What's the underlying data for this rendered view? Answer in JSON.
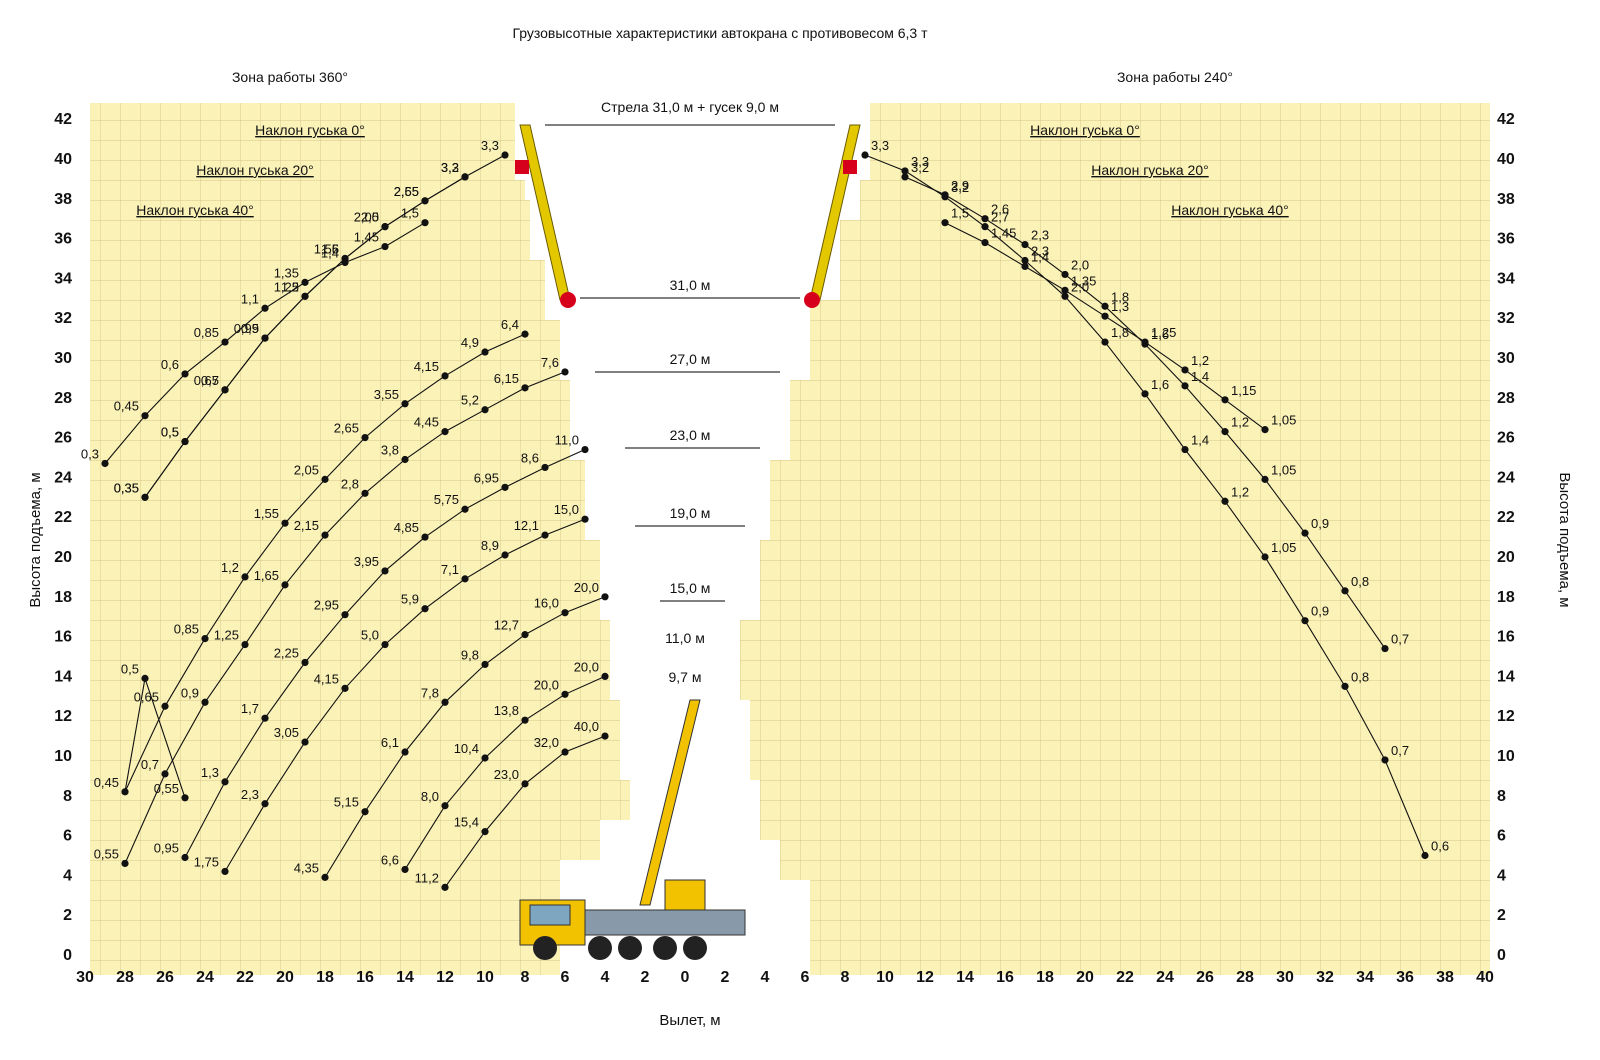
{
  "chart_data": {
    "type": "scatter",
    "title": "Грузовысотные характеристики автокрана с противовесом 6,3 т",
    "xlabel": "Вылет, м",
    "ylabel": "Высота подъема, м",
    "zones": {
      "left": "Зона работы 360°",
      "right": "Зона работы 240°"
    },
    "x_ticks_left": [
      "30",
      "28",
      "26",
      "24",
      "22",
      "20",
      "18",
      "16",
      "14",
      "12",
      "10",
      "8",
      "6",
      "4",
      "2",
      "0"
    ],
    "x_ticks_right": [
      "2",
      "4",
      "6",
      "8",
      "10",
      "12",
      "14",
      "16",
      "18",
      "20",
      "22",
      "24",
      "26",
      "28",
      "30",
      "32",
      "34",
      "36",
      "38",
      "40"
    ],
    "y_ticks": [
      "0",
      "2",
      "4",
      "6",
      "8",
      "10",
      "12",
      "14",
      "16",
      "18",
      "20",
      "22",
      "24",
      "26",
      "28",
      "30",
      "32",
      "34",
      "36",
      "38",
      "40",
      "42"
    ],
    "xlim_left": [
      30,
      0
    ],
    "xlim_right": [
      0,
      40
    ],
    "ylim": [
      0,
      42
    ],
    "tilt_labels": [
      "Наклон гуська 0°",
      "Наклон гуська 20°",
      "Наклон гуська 40°"
    ],
    "boom_labels": [
      "Стрела  31,0 м + гусек 9,0 м",
      "31,0 м",
      "27,0 м",
      "23,0 м",
      "19,0 м",
      "15,0 м",
      "11,0 м",
      "9,7 м"
    ],
    "series_left": [
      {
        "name": "Наклон гуська 0°",
        "points": [
          [
            9,
            40.2,
            "3,3"
          ],
          [
            11,
            39.1,
            "3,3"
          ],
          [
            13,
            37.9,
            "2,55"
          ],
          [
            15,
            36.6,
            "2,0"
          ],
          [
            17,
            35,
            "1,55"
          ],
          [
            19,
            33.1,
            "1,2"
          ],
          [
            21,
            31,
            "0,9"
          ],
          [
            23,
            28.4,
            "0,65"
          ],
          [
            25,
            25.8,
            "0,5"
          ],
          [
            27,
            23,
            "0,35"
          ]
        ]
      },
      {
        "name": "Наклон гуська 20°",
        "points": [
          [
            11,
            39.1,
            "3,2"
          ],
          [
            13,
            37.9,
            "2,65"
          ],
          [
            15,
            36.6,
            "2,05"
          ],
          [
            17,
            35,
            "1,6"
          ],
          [
            19,
            33.1,
            "1,25"
          ],
          [
            21,
            31,
            "0,95"
          ],
          [
            23,
            28.4,
            "0,7"
          ],
          [
            25,
            25.8,
            "0,5"
          ],
          [
            27,
            23,
            "0,35"
          ]
        ]
      },
      {
        "name": "Наклон гуська 40°",
        "points": [
          [
            13,
            36.8,
            "1,5"
          ],
          [
            15,
            35.6,
            "1,45"
          ],
          [
            17,
            34.8,
            "1,4"
          ],
          [
            19,
            33.8,
            "1,35"
          ],
          [
            21,
            32.5,
            "1,1"
          ],
          [
            23,
            30.8,
            "0,85"
          ],
          [
            25,
            29.2,
            "0,6"
          ],
          [
            27,
            27.1,
            "0,45"
          ],
          [
            29,
            24.7,
            "0,3"
          ]
        ]
      },
      {
        "name": "31,0 м",
        "points": [
          [
            8,
            31.2,
            "6,4"
          ],
          [
            10,
            30.3,
            "4,9"
          ],
          [
            12,
            29.1,
            "4,15"
          ],
          [
            14,
            27.7,
            "3,55"
          ],
          [
            16,
            26,
            "2,65"
          ],
          [
            18,
            23.9,
            "2,05"
          ],
          [
            20,
            21.7,
            "1,55"
          ],
          [
            22,
            19,
            "1,2"
          ],
          [
            24,
            15.9,
            "0,85"
          ],
          [
            26,
            12.5,
            "0,65"
          ],
          [
            28,
            8.2,
            "0,45"
          ],
          [
            27,
            13.9,
            "0,5"
          ],
          [
            25,
            7.9,
            "0,55"
          ]
        ]
      },
      {
        "name": "27,0 м",
        "points": [
          [
            6,
            29.3,
            "7,6"
          ],
          [
            8,
            28.5,
            "6,15"
          ],
          [
            10,
            27.4,
            "5,2"
          ],
          [
            12,
            26.3,
            "4,45"
          ],
          [
            14,
            24.9,
            "3,8"
          ],
          [
            16,
            23.2,
            "2,8"
          ],
          [
            18,
            21.1,
            "2,15"
          ],
          [
            20,
            18.6,
            "1,65"
          ],
          [
            22,
            15.6,
            "1,25"
          ],
          [
            24,
            12.7,
            "0,9"
          ],
          [
            26,
            9.1,
            "0,7"
          ],
          [
            28,
            4.6,
            "0,55"
          ]
        ]
      },
      {
        "name": "23,0 м",
        "points": [
          [
            5,
            25.4,
            "11,0"
          ],
          [
            7,
            24.5,
            "8,6"
          ],
          [
            9,
            23.5,
            "6,95"
          ],
          [
            11,
            22.4,
            "5,75"
          ],
          [
            13,
            21,
            "4,85"
          ],
          [
            15,
            19.3,
            "3,95"
          ],
          [
            17,
            17.1,
            "2,95"
          ],
          [
            19,
            14.7,
            "2,25"
          ],
          [
            21,
            11.9,
            "1,7"
          ],
          [
            23,
            8.7,
            "1,3"
          ],
          [
            25,
            4.9,
            "0,95"
          ]
        ]
      },
      {
        "name": "19,0 м",
        "points": [
          [
            5,
            21.9,
            "15,0"
          ],
          [
            7,
            21.1,
            "12,1"
          ],
          [
            9,
            20.1,
            "8,9"
          ],
          [
            11,
            18.9,
            "7,1"
          ],
          [
            13,
            17.4,
            "5,9"
          ],
          [
            15,
            15.6,
            "5,0"
          ],
          [
            17,
            13.4,
            "4,15"
          ],
          [
            19,
            10.7,
            "3,05"
          ],
          [
            21,
            7.6,
            "2,3"
          ],
          [
            23,
            4.2,
            "1,75"
          ]
        ]
      },
      {
        "name": "15,0 м",
        "points": [
          [
            4,
            18,
            "20,0"
          ],
          [
            6,
            17.2,
            "16,0"
          ],
          [
            8,
            16.1,
            "12,7"
          ],
          [
            10,
            14.6,
            "9,8"
          ],
          [
            12,
            12.7,
            "7,8"
          ],
          [
            14,
            10.2,
            "6,1"
          ],
          [
            16,
            7.2,
            "5,15"
          ],
          [
            18,
            3.9,
            "4,35"
          ]
        ]
      },
      {
        "name": "11,0 м",
        "points": [
          [
            4,
            14,
            "20,0"
          ],
          [
            6,
            13.1,
            "20,0"
          ],
          [
            8,
            11.8,
            "13,8"
          ],
          [
            10,
            9.9,
            "10,4"
          ],
          [
            12,
            7.5,
            "8,0"
          ],
          [
            14,
            4.3,
            "6,6"
          ]
        ]
      },
      {
        "name": "9,7 м",
        "points": [
          [
            4,
            11,
            "40,0"
          ],
          [
            6,
            10.2,
            "32,0"
          ],
          [
            8,
            8.6,
            "23,0"
          ],
          [
            10,
            6.2,
            "15,4"
          ],
          [
            12,
            3.4,
            "11,2"
          ]
        ]
      }
    ],
    "series_right": [
      {
        "name": "Наклон гуська 0°",
        "points": [
          [
            9,
            40.2,
            "3,3"
          ],
          [
            11,
            39.4,
            "3,3"
          ],
          [
            13,
            38.1,
            "3,2"
          ],
          [
            15,
            36.6,
            "2,7"
          ],
          [
            17,
            34.9,
            "2,3"
          ],
          [
            19,
            33.1,
            "2,0"
          ],
          [
            21,
            30.8,
            "1,8"
          ],
          [
            23,
            28.2,
            "1,6"
          ],
          [
            25,
            25.4,
            "1,4"
          ],
          [
            27,
            22.8,
            "1,2"
          ],
          [
            29,
            20,
            "1,05"
          ],
          [
            31,
            16.8,
            "0,9"
          ],
          [
            33,
            13.5,
            "0,8"
          ],
          [
            35,
            9.8,
            "0,7"
          ],
          [
            37,
            5,
            "0,6"
          ]
        ]
      },
      {
        "name": "Наклон гуська 20°",
        "points": [
          [
            11,
            39.1,
            "3,2"
          ],
          [
            13,
            38.2,
            "2,9"
          ],
          [
            15,
            37,
            "2,6"
          ],
          [
            17,
            35.7,
            "2,3"
          ],
          [
            19,
            34.2,
            "2,0"
          ],
          [
            21,
            32.6,
            "1,8"
          ],
          [
            23,
            30.7,
            "1,6"
          ],
          [
            25,
            28.6,
            "1,4"
          ],
          [
            27,
            26.3,
            "1,2"
          ],
          [
            29,
            23.9,
            "1,05"
          ],
          [
            31,
            21.2,
            "0,9"
          ],
          [
            33,
            18.3,
            "0,8"
          ],
          [
            35,
            15.4,
            "0,7"
          ]
        ]
      },
      {
        "name": "Наклон гуська 40°",
        "points": [
          [
            13,
            36.8,
            "1,5"
          ],
          [
            15,
            35.8,
            "1,45"
          ],
          [
            17,
            34.6,
            "1,4"
          ],
          [
            19,
            33.4,
            "1,35"
          ],
          [
            21,
            32.1,
            "1,3"
          ],
          [
            23,
            30.8,
            "1,25"
          ],
          [
            25,
            29.4,
            "1,2"
          ],
          [
            27,
            27.9,
            "1,15"
          ],
          [
            29,
            26.4,
            "1,05"
          ]
        ]
      }
    ]
  }
}
